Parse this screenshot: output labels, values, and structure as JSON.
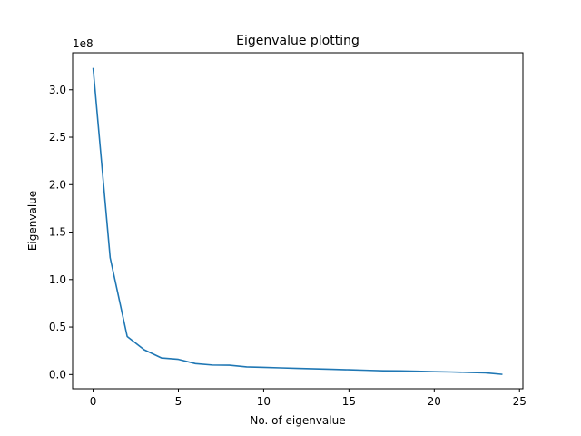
{
  "chart_data": {
    "type": "line",
    "title": "Eigenvalue plotting",
    "xlabel": "No. of eigenvalue",
    "ylabel": "Eigenvalue",
    "y_offset_label": "1e8",
    "y_scale": 100000000,
    "xlim": [
      -1.2,
      25.2
    ],
    "ylim": [
      -15000000,
      339000000
    ],
    "x_ticks": [
      0,
      5,
      10,
      15,
      20,
      25
    ],
    "x_tick_labels": [
      "0",
      "5",
      "10",
      "15",
      "20",
      "25"
    ],
    "y_ticks": [
      0,
      50000000,
      100000000,
      150000000,
      200000000,
      250000000,
      300000000
    ],
    "y_tick_labels": [
      "0.0",
      "0.5",
      "1.0",
      "1.5",
      "2.0",
      "2.5",
      "3.0"
    ],
    "grid": false,
    "series": [
      {
        "color": "#1f77b4",
        "x": [
          0,
          1,
          2,
          3,
          4,
          5,
          6,
          7,
          8,
          9,
          10,
          11,
          12,
          13,
          14,
          15,
          16,
          17,
          18,
          19,
          20,
          21,
          22,
          23,
          24
        ],
        "y": [
          323000000,
          123000000,
          40000000,
          26000000,
          17500000,
          16000000,
          11500000,
          10000000,
          9800000,
          8000000,
          7500000,
          7000000,
          6500000,
          6000000,
          5500000,
          5000000,
          4500000,
          4000000,
          3800000,
          3500000,
          3000000,
          2700000,
          2300000,
          1800000,
          200000
        ]
      }
    ]
  }
}
